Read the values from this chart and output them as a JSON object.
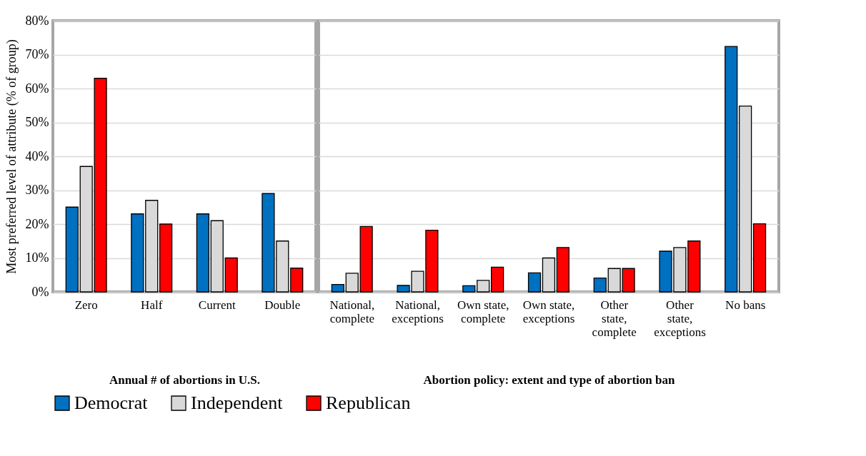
{
  "chart_data": [
    {
      "type": "bar",
      "categories": [
        "Zero",
        "Half",
        "Current",
        "Double"
      ],
      "xlabel": "Annual # of abortions in U.S.",
      "ylabel": "Most preferred level of attribute (% of group)",
      "ylim": [
        0,
        80
      ],
      "yticks": [
        {
          "value": 0,
          "label": "0%"
        },
        {
          "value": 10,
          "label": "10%"
        },
        {
          "value": 20,
          "label": "20%"
        },
        {
          "value": 30,
          "label": "30%"
        },
        {
          "value": 40,
          "label": "40%"
        },
        {
          "value": 50,
          "label": "50%"
        },
        {
          "value": 60,
          "label": "60%"
        },
        {
          "value": 70,
          "label": "70%"
        },
        {
          "value": 80,
          "label": "80%"
        }
      ],
      "grid": "y",
      "legend": "bottom",
      "series": [
        {
          "name": "Democrat",
          "color": "#0070c0",
          "values": [
            25,
            23,
            23,
            29
          ]
        },
        {
          "name": "Independent",
          "color": "#d9d9d9",
          "values": [
            37,
            27,
            21,
            15
          ]
        },
        {
          "name": "Republican",
          "color": "#ff0000",
          "values": [
            63,
            20,
            10,
            7
          ]
        }
      ]
    },
    {
      "type": "bar",
      "categories": [
        "National, complete",
        "National, exceptions",
        "Own state, complete",
        "Own state, exceptions",
        "Other state, complete",
        "Other state, exceptions",
        "No bans"
      ],
      "xlabel": "Abortion policy: extent and type of abortion ban",
      "ylim": [
        0,
        80
      ],
      "yticks": [
        0,
        10,
        20,
        30,
        40,
        50,
        60,
        70,
        80
      ],
      "grid": "y",
      "legend": "bottom",
      "tick_labels": "x",
      "series": [
        {
          "name": "Democrat",
          "color": "#0070c0",
          "values": [
            2.2,
            1.9,
            1.8,
            5.6,
            4.1,
            12,
            72.4
          ]
        },
        {
          "name": "Independent",
          "color": "#d9d9d9",
          "values": [
            5.5,
            6.1,
            3.4,
            10,
            6.9,
            13.1,
            54.8
          ]
        },
        {
          "name": "Republican",
          "color": "#ff0000",
          "values": [
            19.3,
            18.2,
            7.3,
            13.1,
            6.9,
            15,
            20.1
          ]
        }
      ]
    }
  ]
}
